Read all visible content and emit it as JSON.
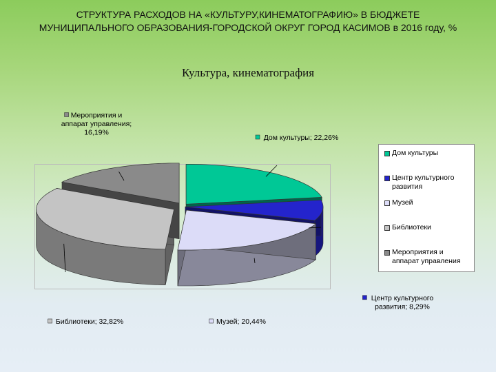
{
  "page": {
    "title_line1": "СТРУКТУРА РАСХОДОВ НА «КУЛЬТУРУ,КИНЕМАТОГРАФИЮ» В  БЮДЖЕТЕ",
    "title_line2": "МУНИЦИПАЛЬНОГО ОБРАЗОВАНИЯ-ГОРОДСКОЙ ОКРУГ ГОРОД КАСИМОВ   в 2016 году, %"
  },
  "chart_data": {
    "type": "pie",
    "title": "Культура, кинематография",
    "legend_position": "right",
    "slices": [
      {
        "label": "Дом культуры",
        "value": 22.26,
        "value_text": "22,26%",
        "color": "#00c896"
      },
      {
        "label": "Центр культурного развития",
        "value": 8.29,
        "value_text": "8,29%",
        "color": "#2424cc"
      },
      {
        "label": "Музей",
        "value": 20.44,
        "value_text": "20,44%",
        "color": "#dcdcf8"
      },
      {
        "label": "Библиотеки",
        "value": 32.82,
        "value_text": "32,82%",
        "color": "#c4c4c4"
      },
      {
        "label": "Мероприятия и аппарат управления",
        "value": 16.19,
        "value_text": "16,19%",
        "color": "#8a8a8a"
      }
    ],
    "data_labels": [
      {
        "lines": [
          "Дом культуры; 22,26%"
        ]
      },
      {
        "lines": [
          "Центр культурного",
          "развития; 8,29%"
        ]
      },
      {
        "lines": [
          "Музей; 20,44%"
        ]
      },
      {
        "lines": [
          "Библиотеки; 32,82%"
        ]
      },
      {
        "lines": [
          "Мероприятия и",
          "аппарат управления;",
          "16,19%"
        ]
      }
    ],
    "legend": [
      {
        "lines": [
          "Дом культуры"
        ]
      },
      {
        "lines": [
          "Центр культурного",
          "развития"
        ]
      },
      {
        "lines": [
          "Музей"
        ]
      },
      {
        "lines": [
          "Библиотеки"
        ]
      },
      {
        "lines": [
          "Мероприятия и",
          "аппарат управления"
        ]
      }
    ]
  }
}
